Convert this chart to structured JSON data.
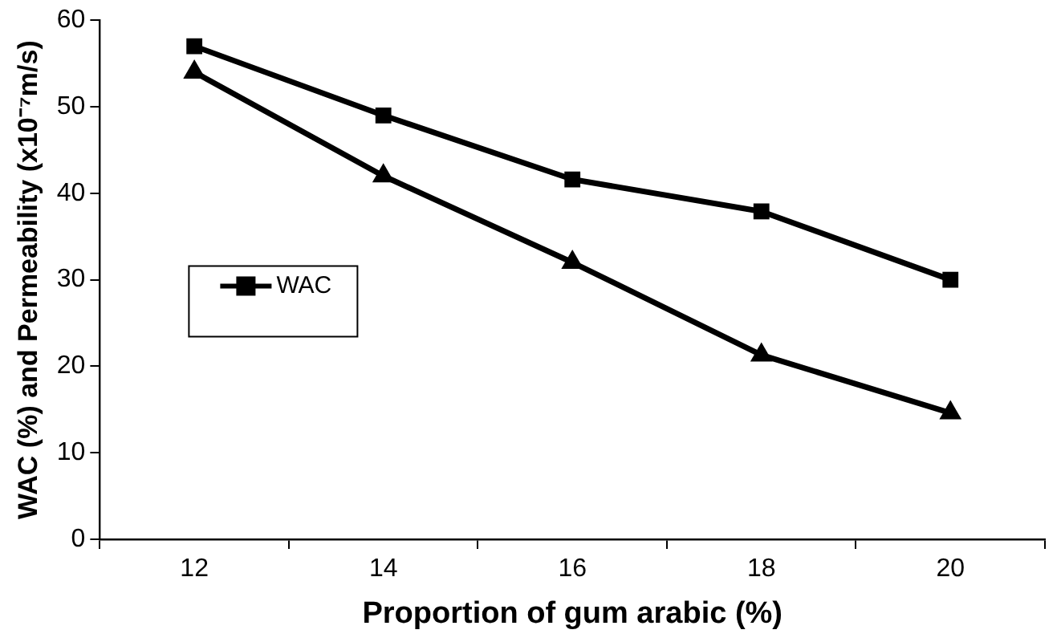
{
  "chart_data": {
    "type": "line",
    "xlabel": "Proportion of gum arabic (%)",
    "ylabel": "WAC (%) and Permeability (x10⁻⁷m/s)",
    "categories": [
      "12",
      "14",
      "16",
      "18",
      "20"
    ],
    "ylim": [
      0,
      60
    ],
    "yticks": [
      0,
      10,
      20,
      30,
      40,
      50,
      60
    ],
    "grid": false,
    "legend": "left",
    "line_style": "solid",
    "series": [
      {
        "name": "WAC",
        "color": "#000000",
        "marker": "square",
        "values": [
          57,
          49,
          41.6,
          37.9,
          30
        ]
      },
      {
        "color": "#000000",
        "marker": "triangle",
        "values": [
          54,
          42,
          32,
          21.3,
          14.6
        ]
      }
    ]
  }
}
